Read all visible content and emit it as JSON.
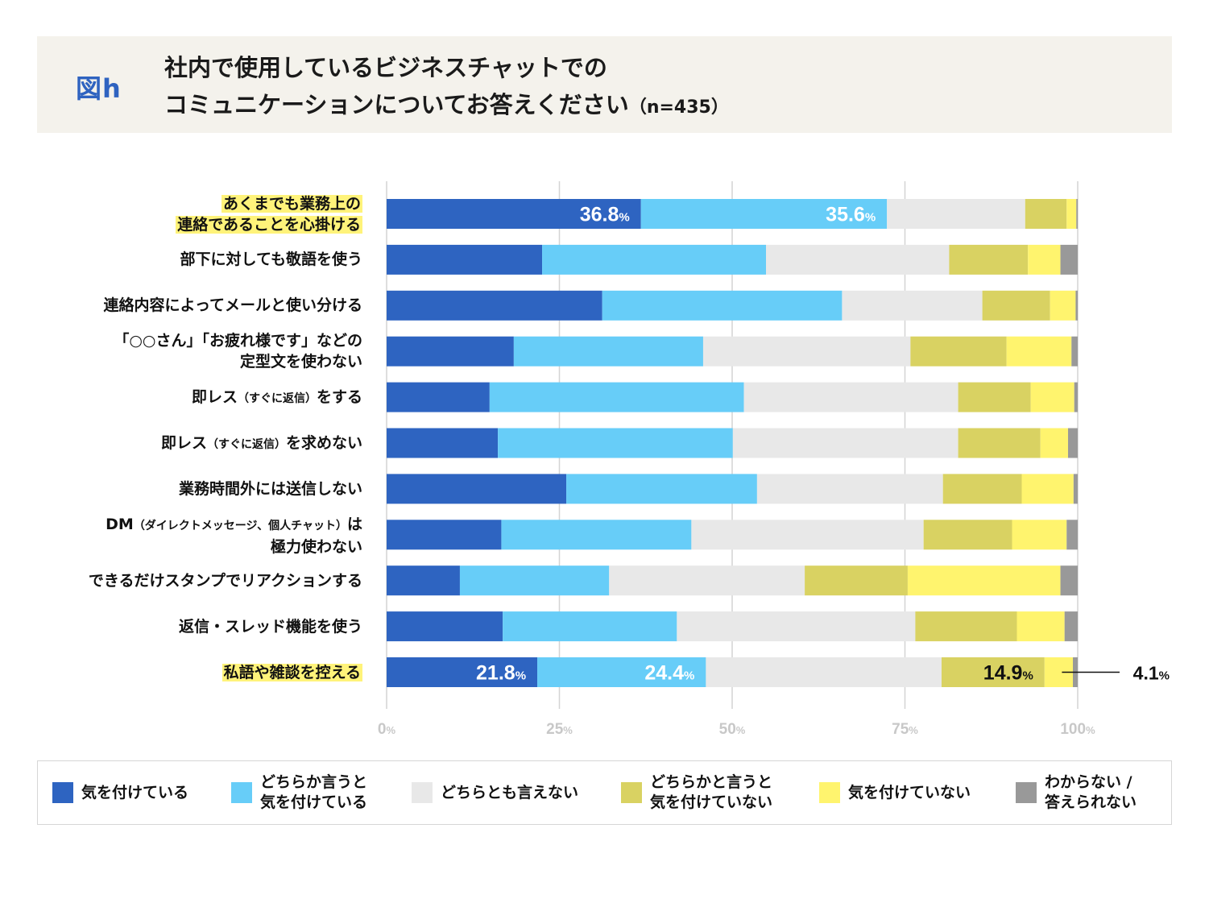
{
  "header": {
    "figure_label": "図h",
    "title_line1": "社内で使用しているビジネスチャットでの",
    "title_line2": "コミュニケーションについてお答えください",
    "sample_size": "（n=435）"
  },
  "colors": {
    "strongly_careful": "#2e64c1",
    "somewhat_careful": "#67cdf8",
    "neutral": "#e8e8e8",
    "somewhat_not_careful": "#d9d262",
    "not_careful": "#fff46e",
    "unknown": "#999999",
    "highlight": "#fff37a",
    "grid": "#d4d4d4",
    "tick": "#c8c8c8"
  },
  "chart_data": {
    "type": "bar",
    "orientation": "horizontal-stacked-100",
    "title": "社内で使用しているビジネスチャットでのコミュニケーションについてお答えください（n=435）",
    "xlabel": "",
    "ylabel": "",
    "xlim": [
      0,
      100
    ],
    "x_ticks": [
      "0%",
      "25%",
      "50%",
      "75%",
      "100%"
    ],
    "grid": true,
    "legend_position": "bottom",
    "categories": [
      {
        "lines": [
          "あくまでも業務上の",
          "連絡であることを心掛ける"
        ],
        "highlight": true
      },
      {
        "lines": [
          "部下に対しても敬語を使う"
        ],
        "highlight": false
      },
      {
        "lines": [
          "連絡内容によってメールと使い分ける"
        ],
        "highlight": false
      },
      {
        "lines": [
          "「○○さん」「お疲れ様です」などの",
          "定型文を使わない"
        ],
        "highlight": false
      },
      {
        "lines": [
          "即レス（すぐに返信）をする"
        ],
        "highlight": false
      },
      {
        "lines": [
          "即レス（すぐに返信）を求めない"
        ],
        "highlight": false
      },
      {
        "lines": [
          "業務時間外には送信しない"
        ],
        "highlight": false
      },
      {
        "lines": [
          "DM（ダイレクトメッセージ、個人チャット）は",
          "極力使わない"
        ],
        "highlight": false
      },
      {
        "lines": [
          "できるだけスタンプでリアクションする"
        ],
        "highlight": false
      },
      {
        "lines": [
          "返信・スレッド機能を使う"
        ],
        "highlight": false
      },
      {
        "lines": [
          "私語や雑談を控える"
        ],
        "highlight": true
      }
    ],
    "series": [
      {
        "name": "気を付けている",
        "color_key": "strongly_careful",
        "values": [
          36.8,
          22.5,
          31.2,
          18.4,
          14.9,
          16.1,
          26.0,
          16.6,
          10.6,
          16.8,
          21.8
        ]
      },
      {
        "name": "どちらか言うと\n気を付けている",
        "color_key": "somewhat_careful",
        "values": [
          35.6,
          32.4,
          34.7,
          27.4,
          36.8,
          34.0,
          27.6,
          27.5,
          21.6,
          25.2,
          24.4
        ]
      },
      {
        "name": "どちらとも言えない",
        "color_key": "neutral",
        "values": [
          20.0,
          26.5,
          20.3,
          30.0,
          31.0,
          32.6,
          26.9,
          33.6,
          28.3,
          34.5,
          34.1
        ]
      },
      {
        "name": "どちらかと言うと\n気を付けていない",
        "color_key": "somewhat_not_careful",
        "values": [
          6.0,
          11.4,
          9.8,
          13.9,
          10.5,
          11.9,
          11.4,
          12.8,
          14.9,
          14.7,
          14.9
        ]
      },
      {
        "name": "気を付けていない",
        "color_key": "not_careful",
        "values": [
          1.4,
          4.7,
          3.7,
          9.4,
          6.3,
          4.0,
          7.5,
          7.9,
          22.1,
          6.9,
          4.1
        ]
      },
      {
        "name": "わからない /\n答えられない",
        "color_key": "unknown",
        "values": [
          0.2,
          2.5,
          0.3,
          0.9,
          0.5,
          1.4,
          0.6,
          1.6,
          2.5,
          1.9,
          0.7
        ]
      }
    ],
    "annotations": [
      {
        "row": 0,
        "series": 0,
        "value": "36.8",
        "unit": "%",
        "color": "#ffffff"
      },
      {
        "row": 0,
        "series": 1,
        "value": "35.6",
        "unit": "%",
        "color": "#ffffff"
      },
      {
        "row": 10,
        "series": 0,
        "value": "21.8",
        "unit": "%",
        "color": "#ffffff"
      },
      {
        "row": 10,
        "series": 1,
        "value": "24.4",
        "unit": "%",
        "color": "#ffffff"
      },
      {
        "row": 10,
        "series": 3,
        "value": "14.9",
        "unit": "%",
        "color": "#111111"
      },
      {
        "row": 10,
        "series": 4,
        "value": "4.1",
        "unit": "%",
        "color": "#111111",
        "callout": true
      }
    ]
  }
}
